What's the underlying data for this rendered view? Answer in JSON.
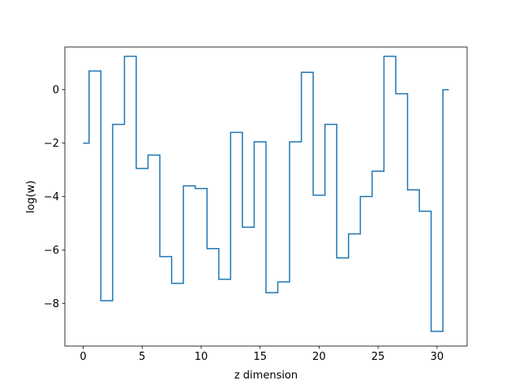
{
  "chart_data": {
    "type": "line",
    "drawstyle": "steps-mid",
    "title": "",
    "xlabel": "z dimension",
    "ylabel": "log(w)",
    "xlim": [
      -1.55,
      32.55
    ],
    "ylim": [
      -9.6,
      1.6
    ],
    "xticks": [
      0,
      5,
      10,
      15,
      20,
      25,
      30
    ],
    "xtick_labels": [
      "0",
      "5",
      "10",
      "15",
      "20",
      "25",
      "30"
    ],
    "yticks": [
      0,
      -2,
      -4,
      -6,
      -8
    ],
    "ytick_labels": [
      "0",
      "−2",
      "−4",
      "−6",
      "−8"
    ],
    "grid": false,
    "series": [
      {
        "color": "#1f77b4",
        "x": [
          0,
          1,
          2,
          3,
          4,
          5,
          6,
          7,
          8,
          9,
          10,
          11,
          12,
          13,
          14,
          15,
          16,
          17,
          18,
          19,
          20,
          21,
          22,
          23,
          24,
          25,
          26,
          27,
          28,
          29,
          30,
          31
        ],
        "values": [
          -2.0,
          0.7,
          -7.9,
          -1.3,
          1.25,
          -2.95,
          -2.45,
          -6.25,
          -7.25,
          -3.6,
          -3.7,
          -5.95,
          -7.1,
          -1.6,
          -5.15,
          -1.95,
          -7.6,
          -7.2,
          -1.95,
          0.65,
          -3.95,
          -1.3,
          -6.3,
          -5.4,
          -4.0,
          -3.05,
          1.25,
          -0.15,
          -3.75,
          -4.55,
          -9.05,
          0.0
        ]
      }
    ]
  }
}
